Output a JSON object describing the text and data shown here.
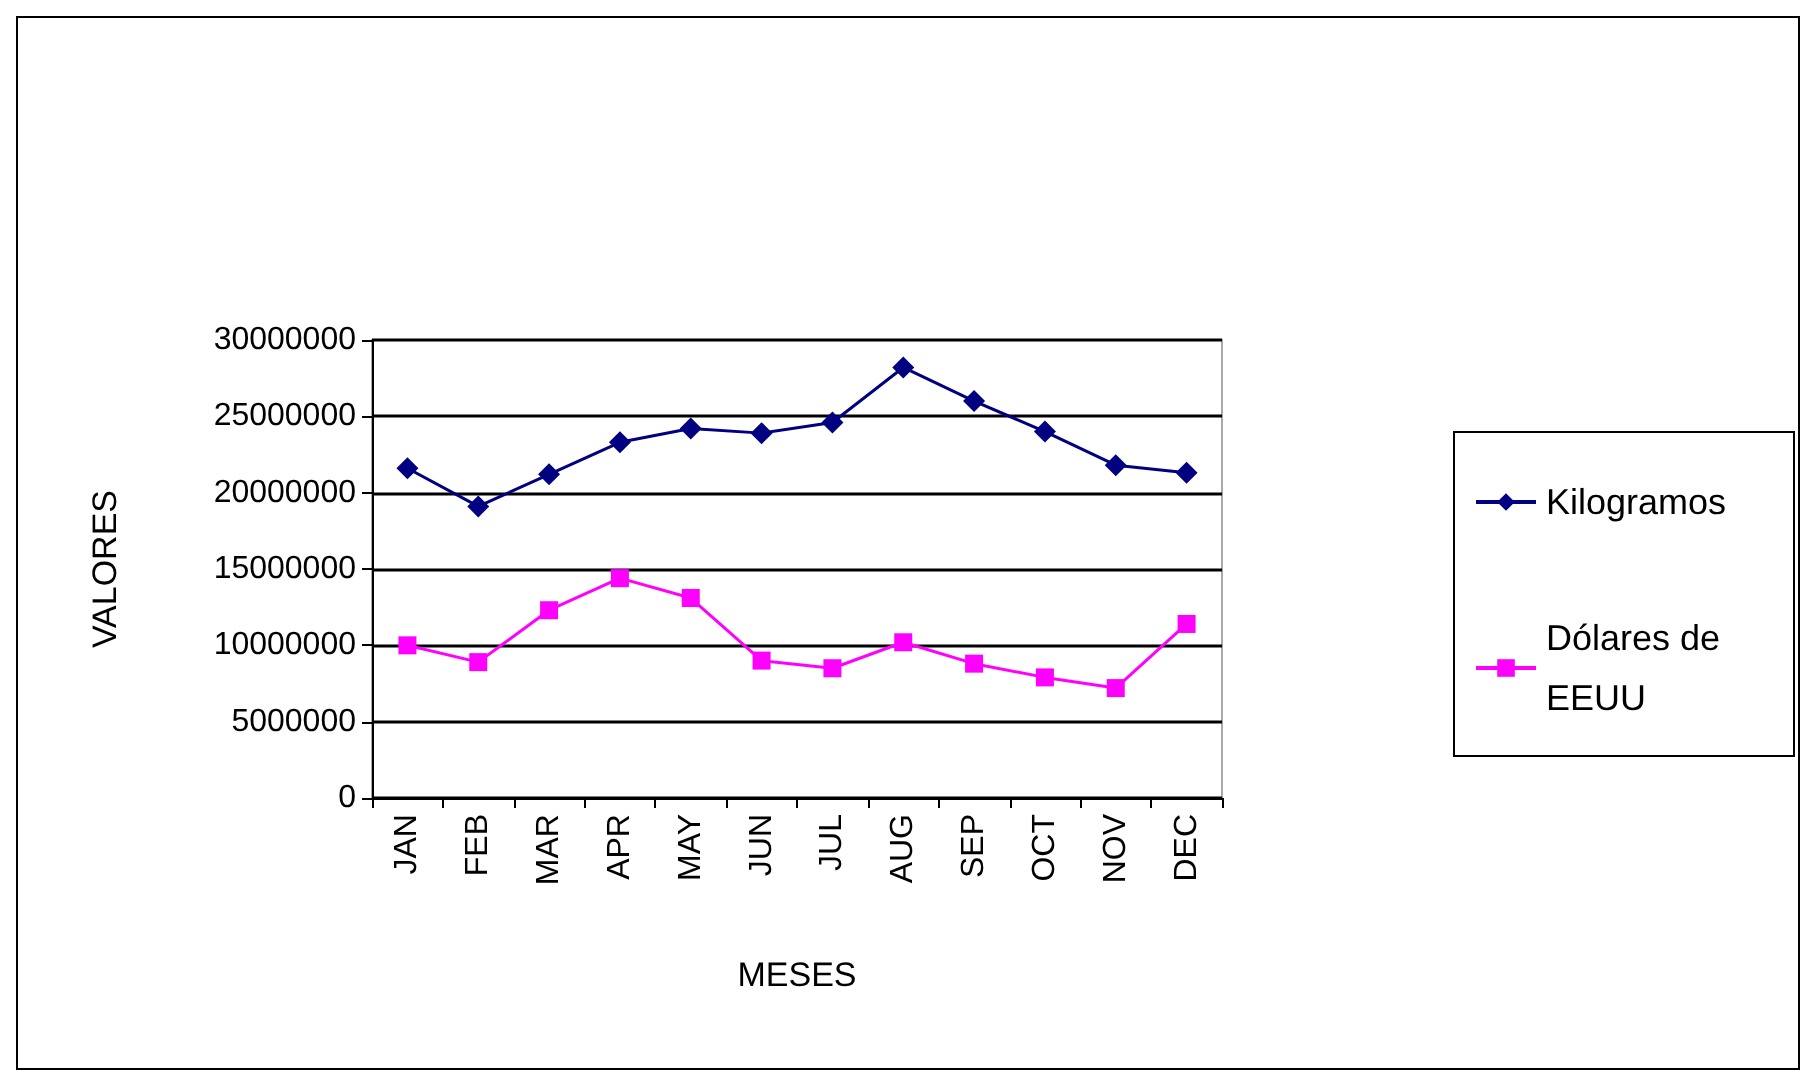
{
  "chart_data": {
    "type": "line",
    "xlabel": "MESES",
    "ylabel": "VALORES",
    "categories": [
      "JAN",
      "FEB",
      "MAR",
      "APR",
      "MAY",
      "JUN",
      "JUL",
      "AUG",
      "SEP",
      "OCT",
      "NOV",
      "DEC"
    ],
    "series": [
      {
        "name": "Kilogramos",
        "color": "#000080",
        "marker": "diamond",
        "values": [
          21600000,
          19100000,
          21200000,
          23300000,
          24200000,
          23900000,
          24600000,
          28200000,
          26000000,
          24000000,
          21800000,
          21300000
        ]
      },
      {
        "name": "Dólares de EEUU",
        "color": "#ff00ff",
        "marker": "square",
        "values": [
          10000000,
          8900000,
          12300000,
          14400000,
          13100000,
          9000000,
          8500000,
          10200000,
          8800000,
          7900000,
          7200000,
          11400000
        ]
      }
    ],
    "ylim": [
      0,
      30000000
    ],
    "yticks": [
      0,
      5000000,
      10000000,
      15000000,
      20000000,
      25000000,
      30000000
    ],
    "grid": "y",
    "legend": "right",
    "line_style": "solid"
  }
}
